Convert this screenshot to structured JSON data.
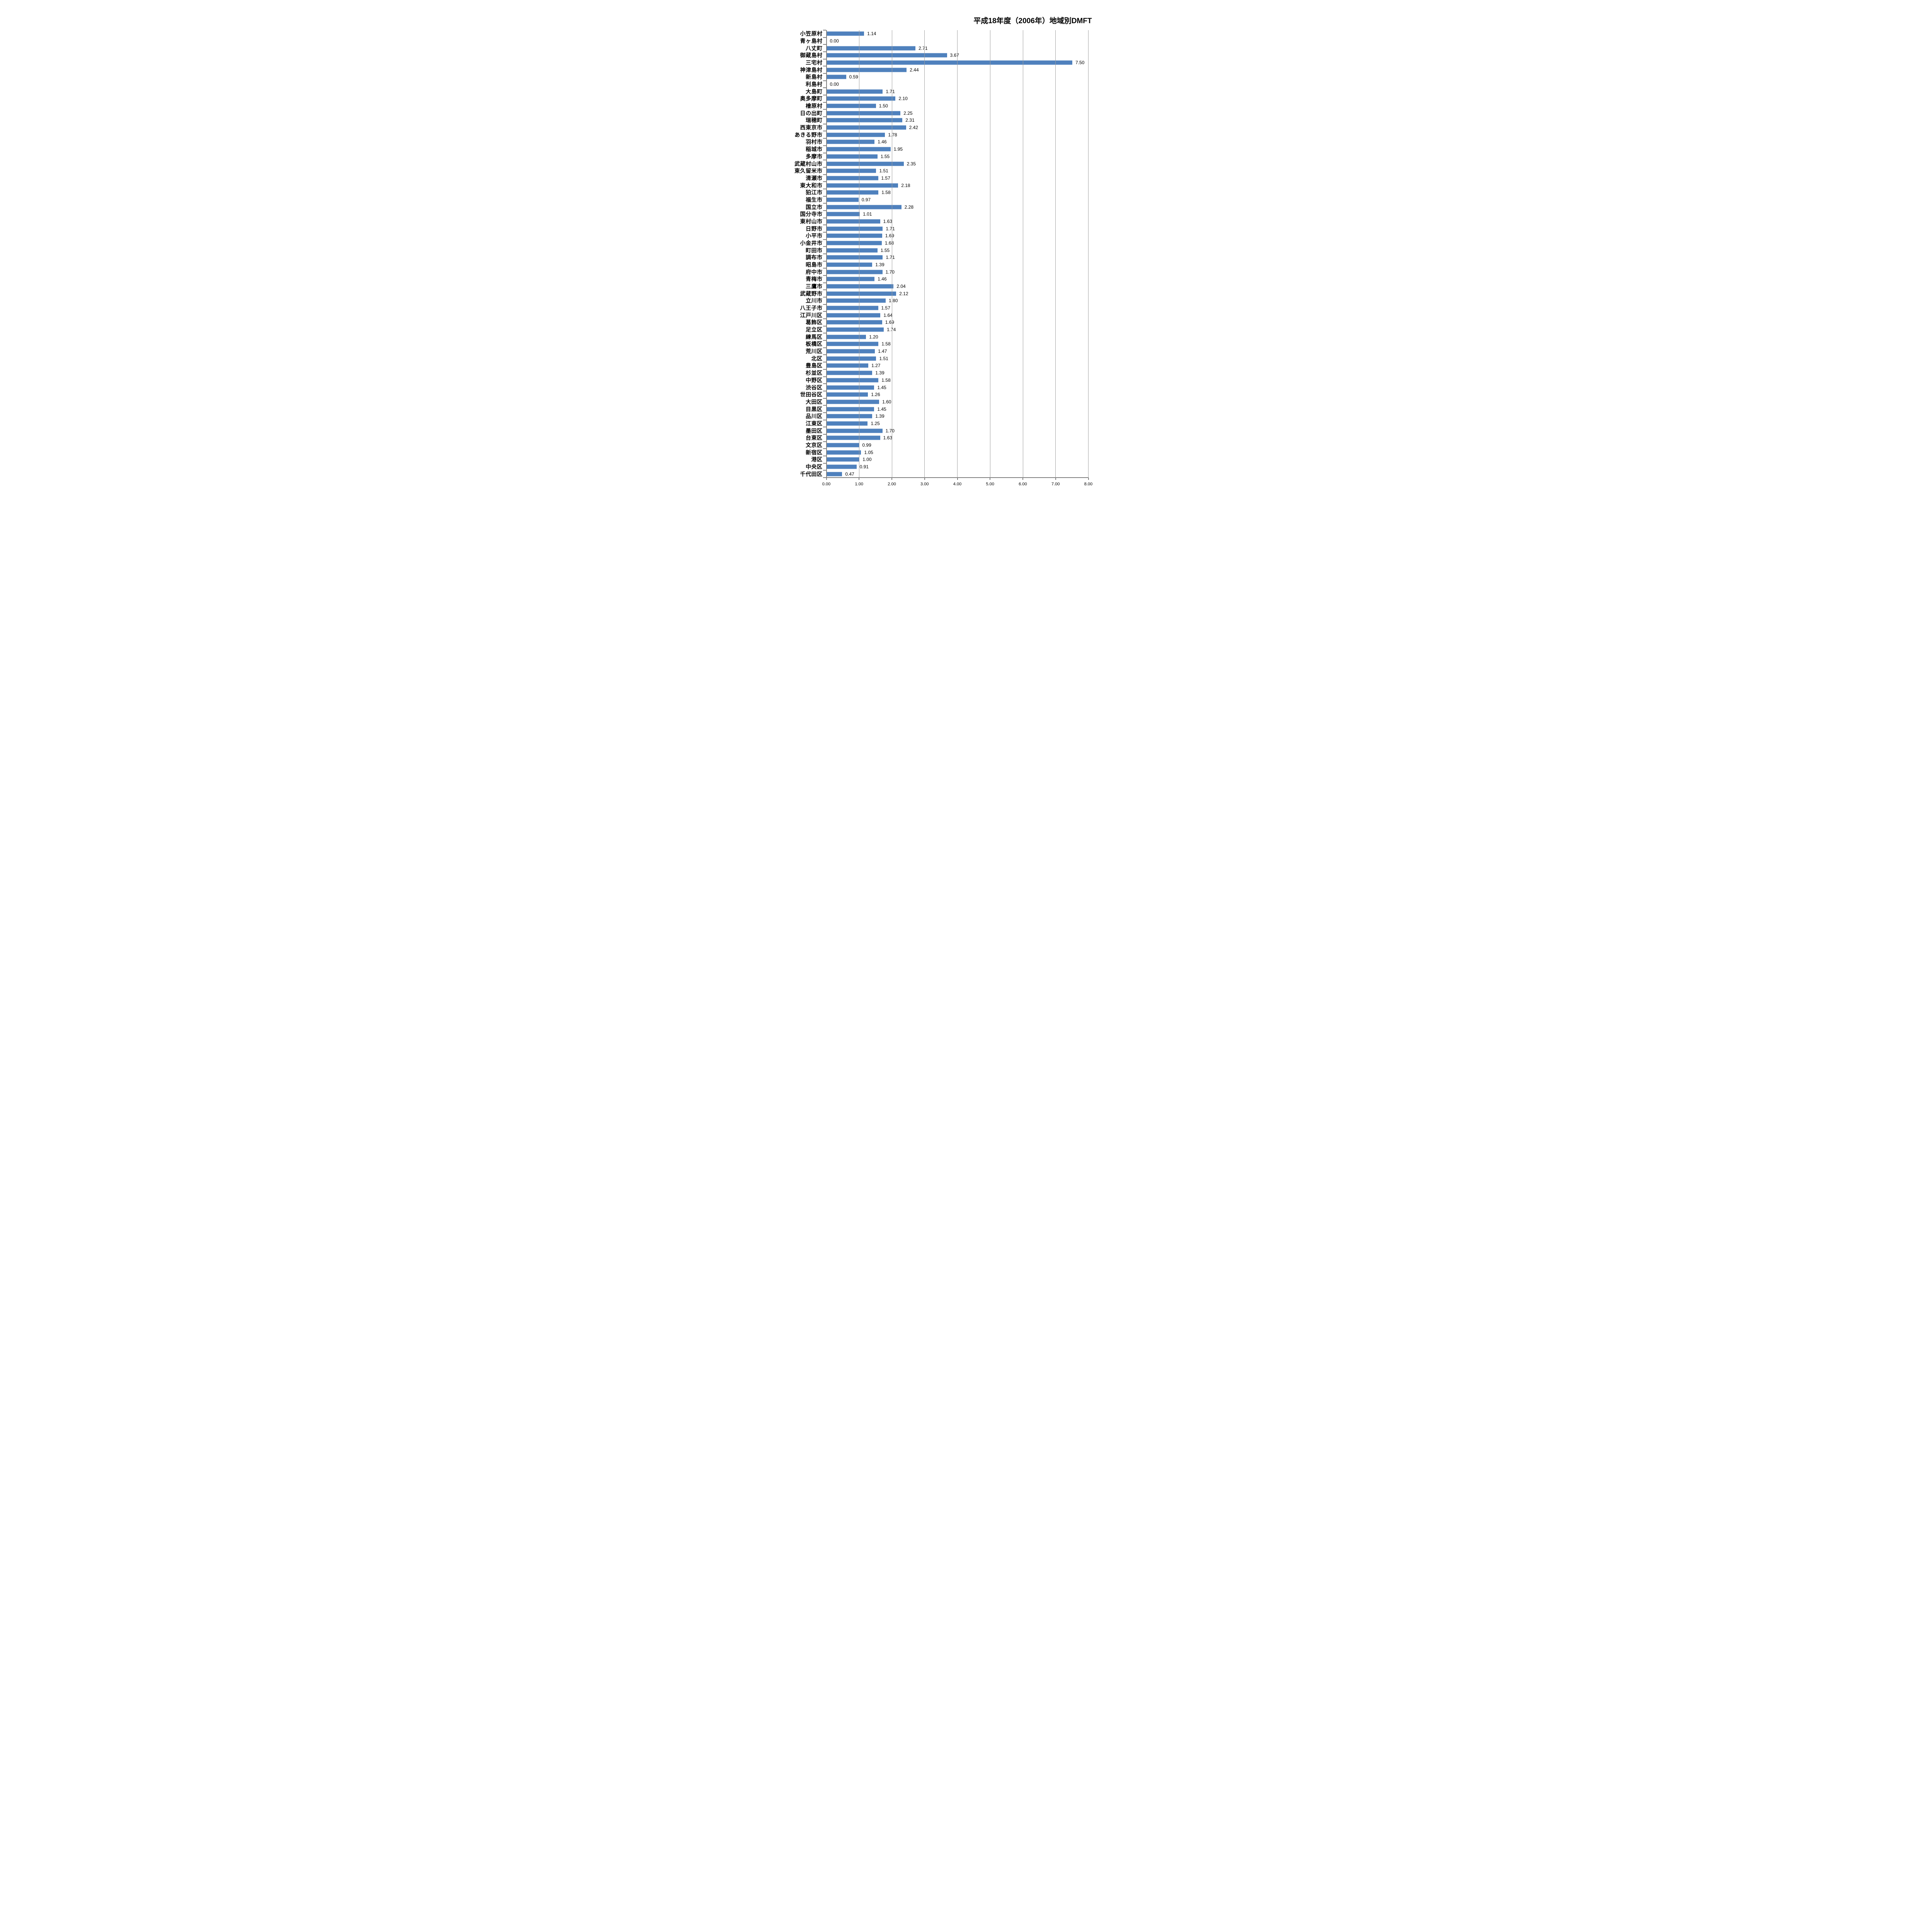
{
  "title": "平成18年度（2006年）地域別DMFT",
  "chart_data": {
    "type": "bar",
    "orientation": "horizontal",
    "title": "平成18年度（2006年）地域別DMFT",
    "xlabel": "",
    "ylabel": "",
    "xlim": [
      0,
      8
    ],
    "grid": true,
    "legend": null,
    "value_labels_shown": true,
    "x_ticks": [
      "0.00",
      "1.00",
      "2.00",
      "3.00",
      "4.00",
      "5.00",
      "6.00",
      "7.00",
      "8.00"
    ],
    "bar_color": "#4F81BD",
    "gridline_color": "#9E9E9E",
    "axis_color": "#808080",
    "categories": [
      "小笠原村",
      "青ヶ島村",
      "八丈町",
      "御蔵島村",
      "三宅村",
      "神津島村",
      "新島村",
      "利島村",
      "大島町",
      "奥多摩町",
      "檜原村",
      "日の出町",
      "瑞穂町",
      "西東京市",
      "あきる野市",
      "羽村市",
      "稲城市",
      "多摩市",
      "武蔵村山市",
      "東久留米市",
      "清瀬市",
      "東大和市",
      "狛江市",
      "福生市",
      "国立市",
      "国分寺市",
      "東村山市",
      "日野市",
      "小平市",
      "小金井市",
      "町田市",
      "調布市",
      "昭島市",
      "府中市",
      "青梅市",
      "三鷹市",
      "武蔵野市",
      "立川市",
      "八王子市",
      "江戸川区",
      "葛飾区",
      "足立区",
      "練馬区",
      "板橋区",
      "荒川区",
      "北区",
      "豊島区",
      "杉並区",
      "中野区",
      "渋谷区",
      "世田谷区",
      "大田区",
      "目黒区",
      "品川区",
      "江東区",
      "墨田区",
      "台東区",
      "文京区",
      "新宿区",
      "港区",
      "中央区",
      "千代田区"
    ],
    "values": [
      1.14,
      0.0,
      2.71,
      3.67,
      7.5,
      2.44,
      0.59,
      0.0,
      1.71,
      2.1,
      1.5,
      2.25,
      2.31,
      2.42,
      1.78,
      1.46,
      1.95,
      1.55,
      2.35,
      1.51,
      1.57,
      2.18,
      1.58,
      0.97,
      2.28,
      1.01,
      1.63,
      1.71,
      1.69,
      1.68,
      1.55,
      1.71,
      1.39,
      1.7,
      1.46,
      2.04,
      2.12,
      1.8,
      1.57,
      1.64,
      1.69,
      1.74,
      1.2,
      1.58,
      1.47,
      1.51,
      1.27,
      1.39,
      1.58,
      1.45,
      1.26,
      1.6,
      1.45,
      1.39,
      1.25,
      1.7,
      1.63,
      0.99,
      1.05,
      1.0,
      0.91,
      0.47
    ]
  }
}
